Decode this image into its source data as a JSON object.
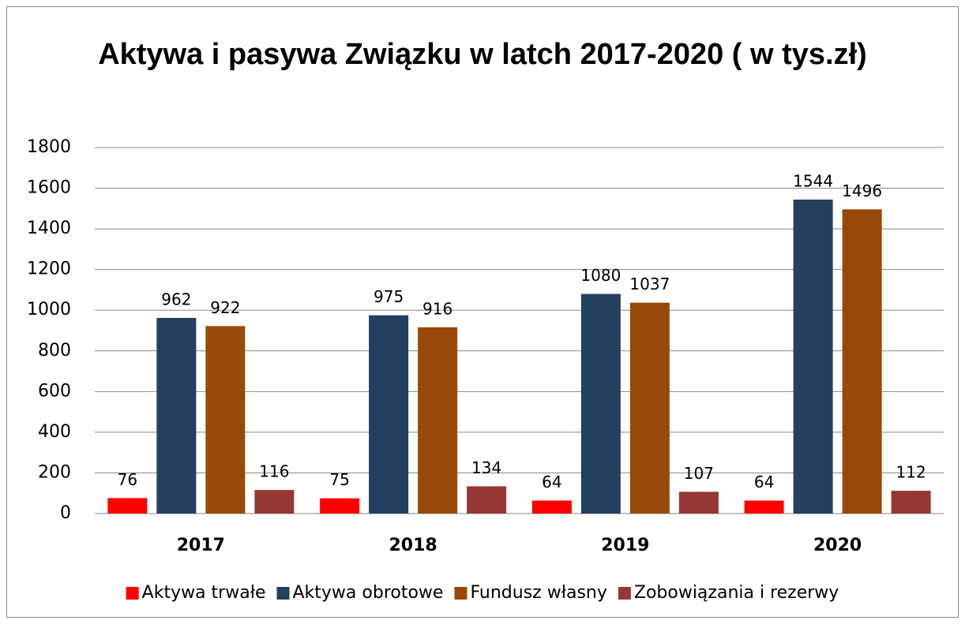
{
  "chart_data": {
    "type": "bar",
    "title": "Aktywa i pasywa Związku w latch 2017-2020 ( w tys.zł)",
    "categories": [
      "2017",
      "2018",
      "2019",
      "2020"
    ],
    "series": [
      {
        "name": "Aktywa trwałe",
        "color": "#ff0000",
        "values": [
          76,
          75,
          64,
          64
        ]
      },
      {
        "name": "Aktywa obrotowe",
        "color": "#243f60",
        "values": [
          962,
          975,
          1080,
          1544
        ]
      },
      {
        "name": "Fundusz własny",
        "color": "#984807",
        "values": [
          922,
          916,
          1037,
          1496
        ]
      },
      {
        "name": "Zobowiązania i rezerwy",
        "color": "#953735",
        "values": [
          116,
          134,
          107,
          112
        ]
      }
    ],
    "ylim": [
      0,
      1800
    ],
    "yticks": [
      0,
      200,
      400,
      600,
      800,
      1000,
      1200,
      1400,
      1600,
      1800
    ],
    "grid": true,
    "legend": "bottom"
  }
}
